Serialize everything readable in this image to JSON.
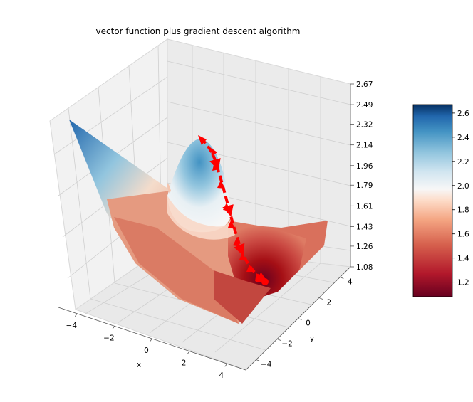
{
  "chart_data": [
    {
      "type": "surface3d",
      "title": "vector function plus gradient descent algorithm",
      "xlabel": "x",
      "ylabel": "y",
      "zlabel": "",
      "x_ticks": [
        -4,
        -2,
        0,
        2,
        4
      ],
      "y_ticks": [
        -4,
        -2,
        0,
        2,
        4
      ],
      "z_ticks": [
        "1.08",
        "1.26",
        "1.43",
        "1.61",
        "1.79",
        "1.96",
        "2.14",
        "2.32",
        "2.49",
        "2.67"
      ],
      "xlim": [
        -5,
        5
      ],
      "ylim": [
        -5,
        5
      ],
      "zlim": [
        1.08,
        2.67
      ],
      "grid": true,
      "colormap": "RdBu",
      "surface": {
        "description_points": [
          {
            "x": -5,
            "y": 5,
            "z": 2.45
          },
          {
            "x": -1.2,
            "y": -0.6,
            "z": 2.35
          },
          {
            "x": 2.6,
            "y": 2.3,
            "z": 1.12
          },
          {
            "x": 5,
            "y": 5,
            "z": 1.6
          }
        ]
      },
      "descent_path": {
        "color": "#ff0000",
        "style": "arrows",
        "points": [
          {
            "x": 0.0,
            "y": 0.0,
            "z": 2.3
          },
          {
            "x": 0.5,
            "y": 0.3,
            "z": 2.1
          },
          {
            "x": 1.0,
            "y": 0.8,
            "z": 1.85
          },
          {
            "x": 1.5,
            "y": 1.3,
            "z": 1.55
          },
          {
            "x": 2.0,
            "y": 1.8,
            "z": 1.3
          },
          {
            "x": 2.4,
            "y": 2.2,
            "z": 1.15
          },
          {
            "x": 2.6,
            "y": 2.3,
            "z": 1.1
          }
        ]
      }
    },
    {
      "type": "colorbar",
      "ticks": [
        "1.2",
        "1.4",
        "1.6",
        "1.8",
        "2.0",
        "2.2",
        "2.4",
        "2.6"
      ],
      "range": [
        1.08,
        2.67
      ],
      "colormap": "RdBu"
    }
  ]
}
